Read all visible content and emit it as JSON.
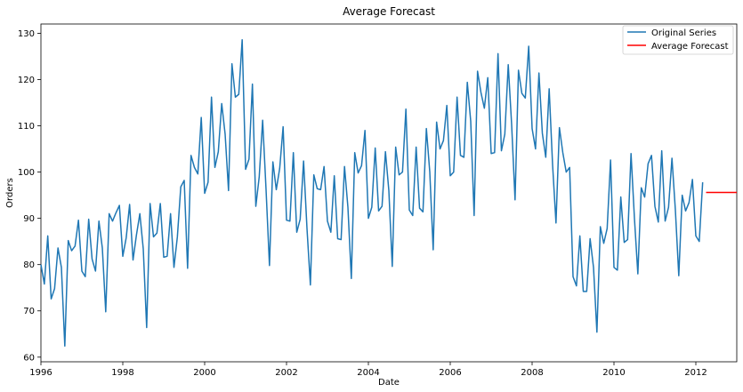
{
  "chart_data": {
    "type": "line",
    "title": "Average Forecast",
    "xlabel": "Date",
    "ylabel": "Orders",
    "xlim": [
      "1996-01",
      "2013-01"
    ],
    "ylim": [
      59,
      132
    ],
    "x_ticks": [
      "1996",
      "1998",
      "2000",
      "2002",
      "2004",
      "2006",
      "2008",
      "2010",
      "2012"
    ],
    "y_ticks": [
      "60",
      "70",
      "80",
      "90",
      "100",
      "110",
      "120",
      "130"
    ],
    "grid": false,
    "legend": "top-right",
    "series": [
      {
        "name": "Original Series",
        "color": "#1f77b4",
        "start": "1996-01",
        "frequency": "monthly",
        "values": [
          80.0,
          75.8,
          86.2,
          72.6,
          74.8,
          83.6,
          79.4,
          62.4,
          85.2,
          83.0,
          84.0,
          89.6,
          78.6,
          77.4,
          89.8,
          81.2,
          78.6,
          89.4,
          83.6,
          69.8,
          91.0,
          89.4,
          91.2,
          92.8,
          81.8,
          85.8,
          93.0,
          81.0,
          86.4,
          91.0,
          83.4,
          66.4,
          93.2,
          86.0,
          86.8,
          93.2,
          81.6,
          81.8,
          91.0,
          79.4,
          86.0,
          96.8,
          98.2,
          79.2,
          103.6,
          101.0,
          99.6,
          111.8,
          95.4,
          97.8,
          116.2,
          101.0,
          104.4,
          114.8,
          108.2,
          96.0,
          123.4,
          116.2,
          116.8,
          128.6,
          100.6,
          102.8,
          119.0,
          92.6,
          99.0,
          111.2,
          96.2,
          79.8,
          102.2,
          96.2,
          100.8,
          109.8,
          89.6,
          89.4,
          104.2,
          87.0,
          89.8,
          102.4,
          87.8,
          75.6,
          99.4,
          96.4,
          96.2,
          101.2,
          89.4,
          87.0,
          99.2,
          85.6,
          85.4,
          101.2,
          92.4,
          77.0,
          104.2,
          99.8,
          101.4,
          109.0,
          90.0,
          92.4,
          105.2,
          91.6,
          92.6,
          104.4,
          96.0,
          79.6,
          105.4,
          99.4,
          100.0,
          113.6,
          91.8,
          90.6,
          105.4,
          92.2,
          91.4,
          109.4,
          100.0,
          83.2,
          110.8,
          105.0,
          106.8,
          114.4,
          99.2,
          100.0,
          116.2,
          103.6,
          103.2,
          119.4,
          111.0,
          90.6,
          121.8,
          117.2,
          113.8,
          120.4,
          104.0,
          104.2,
          125.6,
          104.6,
          108.2,
          123.2,
          110.2,
          94.0,
          122.0,
          117.0,
          116.0,
          127.2,
          109.4,
          105.0,
          121.4,
          108.4,
          103.2,
          118.0,
          101.6,
          89.0,
          109.6,
          104.2,
          100.0,
          101.0,
          77.4,
          75.4,
          86.2,
          74.2,
          74.2,
          85.6,
          79.4,
          65.4,
          88.2,
          84.6,
          87.8,
          102.6,
          79.4,
          78.8,
          94.6,
          84.8,
          85.4,
          104.0,
          90.0,
          78.0,
          96.6,
          94.6,
          101.8,
          103.6,
          92.6,
          89.2,
          104.6,
          89.4,
          92.4,
          103.0,
          91.8,
          77.6,
          95.0,
          91.6,
          93.4,
          98.4,
          86.2,
          85.0,
          97.8
        ]
      },
      {
        "name": "Average Forecast",
        "color": "#ff0000",
        "x": [
          "2012-04",
          "2013-01"
        ],
        "values": [
          95.6,
          95.6
        ]
      }
    ]
  }
}
